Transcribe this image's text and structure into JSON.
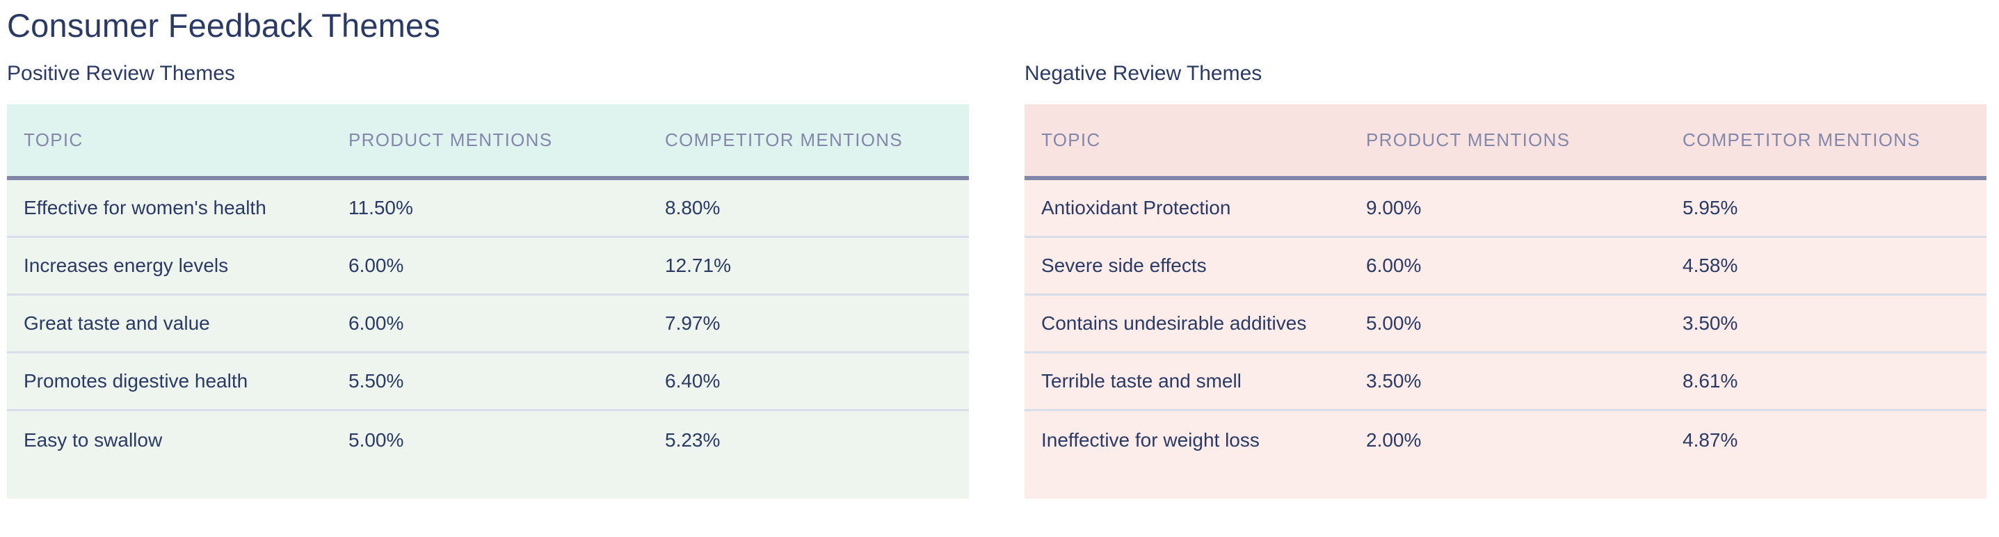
{
  "page": {
    "title": "Consumer Feedback Themes"
  },
  "colors": {
    "text_primary": "#2b3a64",
    "column_header_text": "#8387ab",
    "header_rule": "#8286a9",
    "row_divider": "#d9dce9",
    "positive_header_bg": "#e0f4ef",
    "positive_row_bg": "#edf5ee",
    "negative_header_bg": "#f9e3e1",
    "negative_row_bg": "#fcecea",
    "page_bg": "#ffffff"
  },
  "tables": [
    {
      "heading": "Positive Review Themes",
      "columns": [
        "TOPIC",
        "PRODUCT MENTIONS",
        "COMPETITOR MENTIONS"
      ],
      "rows": [
        {
          "topic": "Effective for women's health",
          "product": "11.50%",
          "competitor": "8.80%"
        },
        {
          "topic": "Increases energy levels",
          "product": "6.00%",
          "competitor": "12.71%"
        },
        {
          "topic": "Great taste and value",
          "product": "6.00%",
          "competitor": "7.97%"
        },
        {
          "topic": "Promotes digestive health",
          "product": "5.50%",
          "competitor": "6.40%"
        },
        {
          "topic": "Easy to swallow",
          "product": "5.00%",
          "competitor": "5.23%"
        }
      ]
    },
    {
      "heading": "Negative Review Themes",
      "columns": [
        "TOPIC",
        "PRODUCT MENTIONS",
        "COMPETITOR MENTIONS"
      ],
      "rows": [
        {
          "topic": "Antioxidant Protection",
          "product": "9.00%",
          "competitor": "5.95%"
        },
        {
          "topic": "Severe side effects",
          "product": "6.00%",
          "competitor": "4.58%"
        },
        {
          "topic": "Contains undesirable additives",
          "product": "5.00%",
          "competitor": "3.50%"
        },
        {
          "topic": "Terrible taste and smell",
          "product": "3.50%",
          "competitor": "8.61%"
        },
        {
          "topic": "Ineffective for weight loss",
          "product": "2.00%",
          "competitor": "4.87%"
        }
      ]
    }
  ]
}
